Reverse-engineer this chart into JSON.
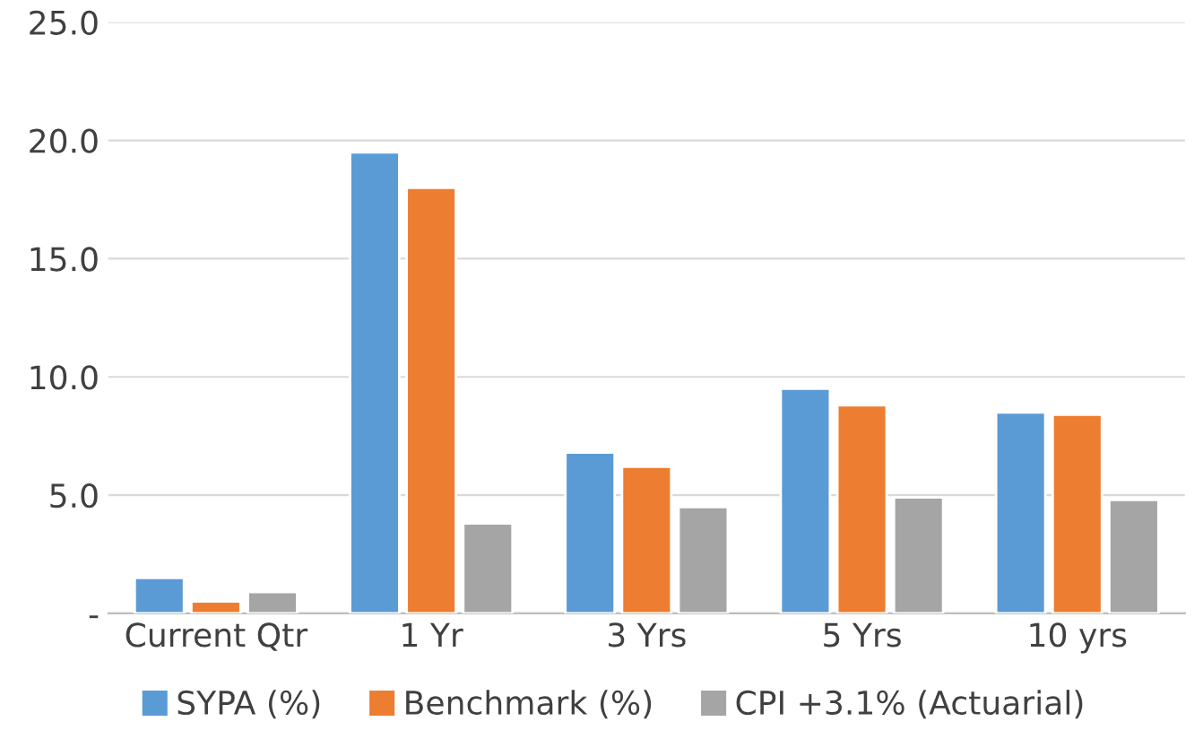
{
  "chart_data": {
    "type": "bar",
    "categories": [
      "Current Qtr",
      "1 Yr",
      "3 Yrs",
      "5 Yrs",
      "10 yrs"
    ],
    "series": [
      {
        "name": "SYPA (%)",
        "color": "#5b9bd5",
        "values": [
          1.5,
          19.5,
          6.8,
          9.5,
          8.5
        ]
      },
      {
        "name": "Benchmark (%)",
        "color": "#ed7d31",
        "values": [
          0.5,
          18.0,
          6.2,
          8.8,
          8.4
        ]
      },
      {
        "name": "CPI +3.1% (Actuarial)",
        "color": "#a5a5a5",
        "values": [
          0.9,
          3.8,
          4.5,
          4.9,
          4.8
        ]
      }
    ],
    "ylim": [
      0,
      25
    ],
    "yticks": [
      {
        "value": 0,
        "label": "-"
      },
      {
        "value": 5,
        "label": "5.0"
      },
      {
        "value": 10,
        "label": "10.0"
      },
      {
        "value": 15,
        "label": "15.0"
      },
      {
        "value": 20,
        "label": "20.0"
      },
      {
        "value": 25,
        "label": "25.0"
      }
    ],
    "grid": "y",
    "legend": "bottom"
  }
}
